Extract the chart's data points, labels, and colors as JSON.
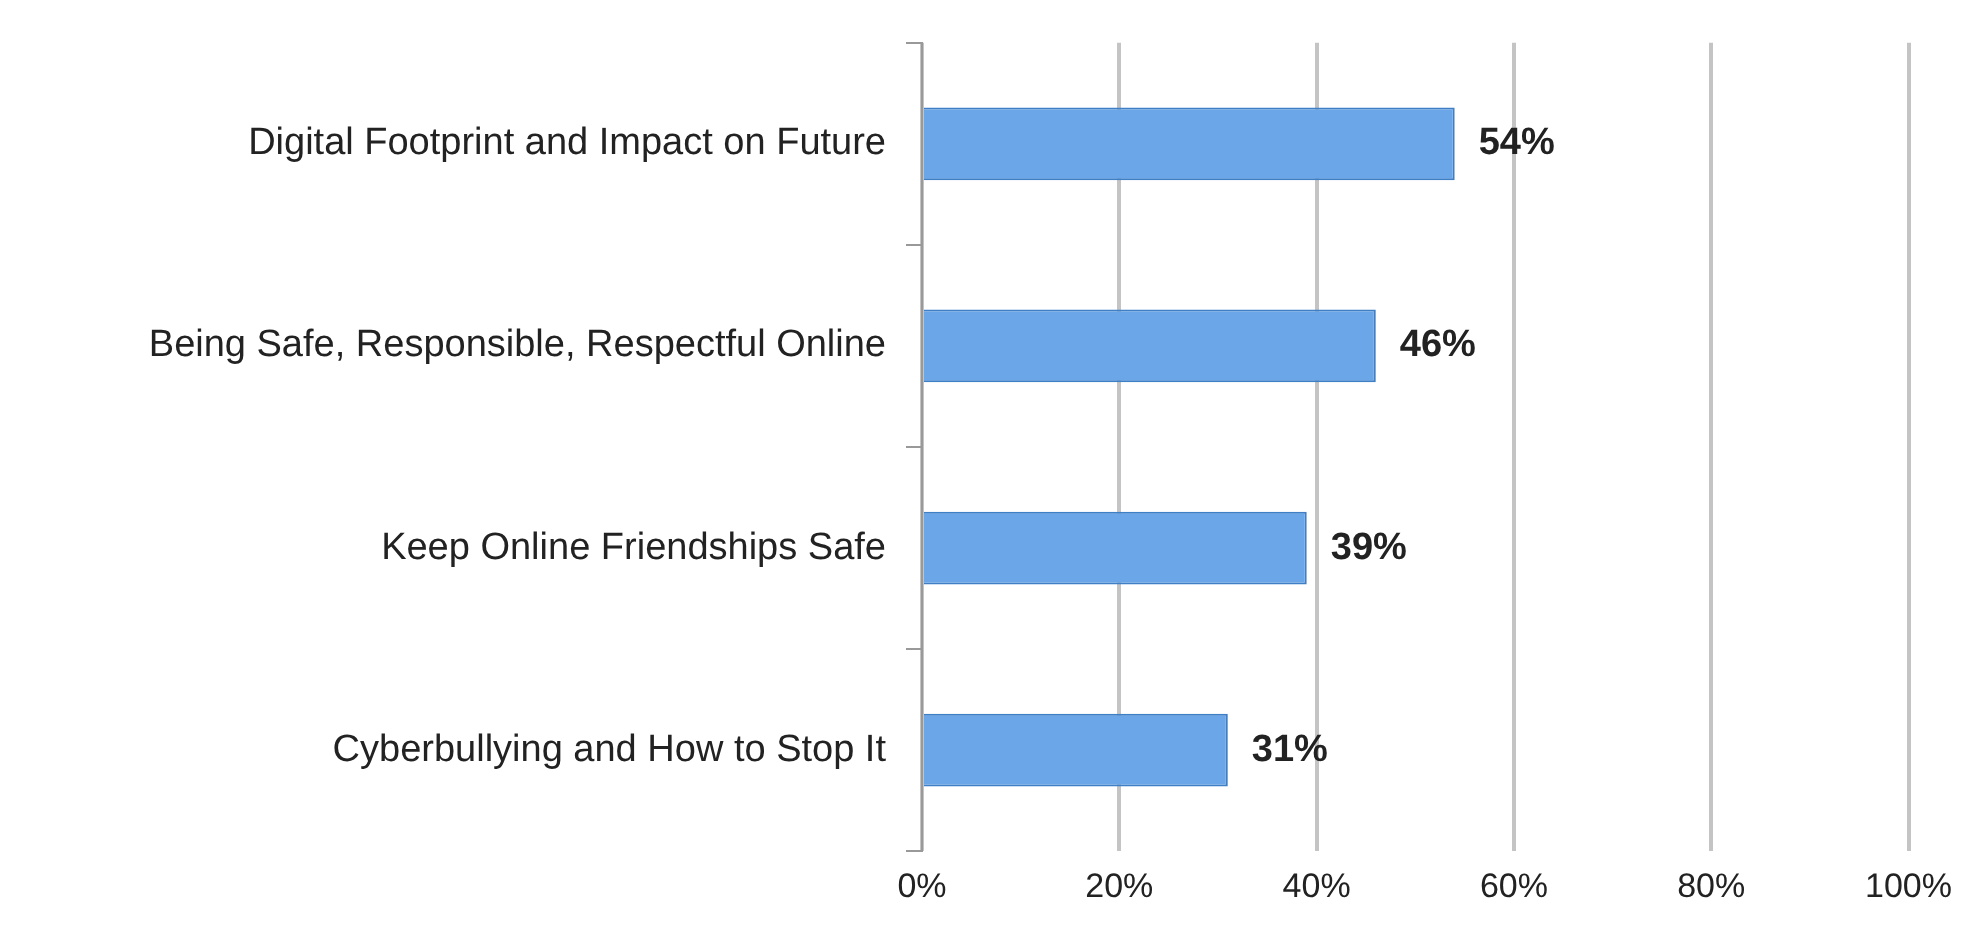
{
  "chart_data": {
    "type": "bar",
    "orientation": "horizontal",
    "categories": [
      "Digital Footprint and Impact on Future",
      "Being Safe, Responsible, Respectful Online",
      "Keep Online Friendships Safe",
      "Cyberbullying and How to Stop It"
    ],
    "values": [
      54,
      46,
      39,
      31
    ],
    "value_labels": [
      "54%",
      "46%",
      "39%",
      "31%"
    ],
    "color": "#6aa6e8",
    "xlim": [
      0,
      100
    ],
    "xticks": [
      {
        "value": 0,
        "label": "0%"
      },
      {
        "value": 20,
        "label": "20%"
      },
      {
        "value": 40,
        "label": "40%"
      },
      {
        "value": 60,
        "label": "60%"
      },
      {
        "value": 80,
        "label": "80%"
      },
      {
        "value": 100,
        "label": "100%"
      }
    ],
    "grid": "x"
  }
}
